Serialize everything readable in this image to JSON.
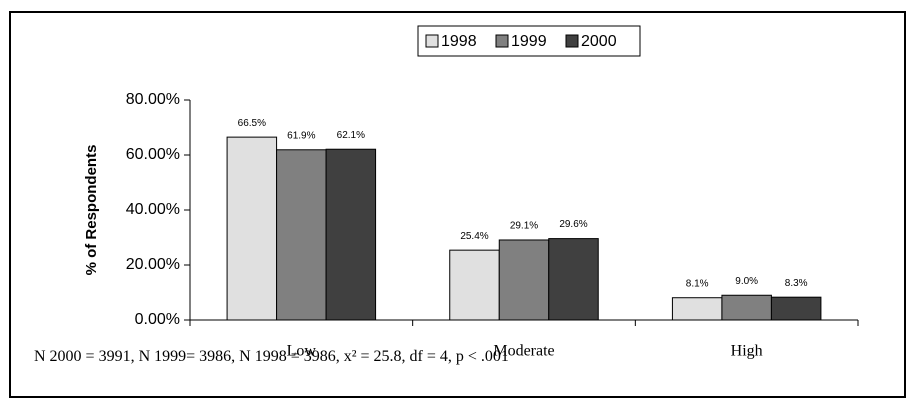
{
  "chart_data": {
    "type": "bar",
    "y_label": "% of Respondents",
    "categories": [
      "Low",
      "Moderate",
      "High"
    ],
    "series": [
      {
        "name": "1998",
        "color": "#e0e0e0",
        "values": [
          66.5,
          25.4,
          8.1
        ],
        "value_labels": [
          "66.5%",
          "25.4%",
          "8.1%"
        ]
      },
      {
        "name": "1999",
        "color": "#808080",
        "values": [
          61.9,
          29.1,
          9.0
        ],
        "value_labels": [
          "61.9%",
          "29.1%",
          "9.0%"
        ]
      },
      {
        "name": "2000",
        "color": "#404040",
        "values": [
          62.1,
          29.6,
          8.3
        ],
        "value_labels": [
          "62.1%",
          "29.6%",
          "8.3%"
        ]
      }
    ],
    "ylim": [
      0,
      80
    ],
    "yticks": [
      {
        "value": 0,
        "label": "0.00%"
      },
      {
        "value": 20,
        "label": "20.00%"
      },
      {
        "value": 40,
        "label": "40.00%"
      },
      {
        "value": 60,
        "label": "60.00%"
      },
      {
        "value": 80,
        "label": "80.00%"
      }
    ],
    "legend": "top",
    "note": "N 2000 = 3991, N 1999= 3986, N 1998 = 3986, x² = 25.8, df = 4, p < .001"
  }
}
